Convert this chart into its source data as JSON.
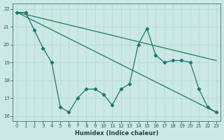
{
  "xlabel": "Humidex (Indice chaleur)",
  "bg_color": "#cce8e4",
  "line_color": "#1a7a6a",
  "grid_color": "#b8ddd8",
  "zigzag_x": [
    0,
    1,
    2,
    3,
    4,
    5,
    6,
    7,
    8,
    9,
    10,
    11,
    12,
    13,
    14,
    15,
    16,
    17,
    18,
    19,
    20,
    21,
    22,
    23
  ],
  "zigzag_y": [
    21.8,
    21.8,
    20.8,
    19.8,
    19.0,
    16.5,
    16.2,
    17.0,
    17.5,
    17.5,
    17.2,
    16.6,
    17.5,
    17.8,
    20.0,
    20.9,
    19.4,
    19.0,
    19.1,
    19.1,
    19.0,
    17.5,
    16.5,
    16.2
  ],
  "line1_x": [
    0,
    23
  ],
  "line1_y": [
    21.8,
    19.1
  ],
  "line2_x": [
    0,
    23
  ],
  "line2_y": [
    21.8,
    16.2
  ],
  "xlim": [
    -0.5,
    23.5
  ],
  "ylim": [
    15.7,
    22.3
  ],
  "yticks": [
    16,
    17,
    18,
    19,
    20,
    21,
    22
  ],
  "xticks": [
    0,
    1,
    2,
    3,
    4,
    5,
    6,
    7,
    8,
    9,
    10,
    11,
    12,
    13,
    14,
    15,
    16,
    17,
    18,
    19,
    20,
    21,
    22,
    23
  ]
}
